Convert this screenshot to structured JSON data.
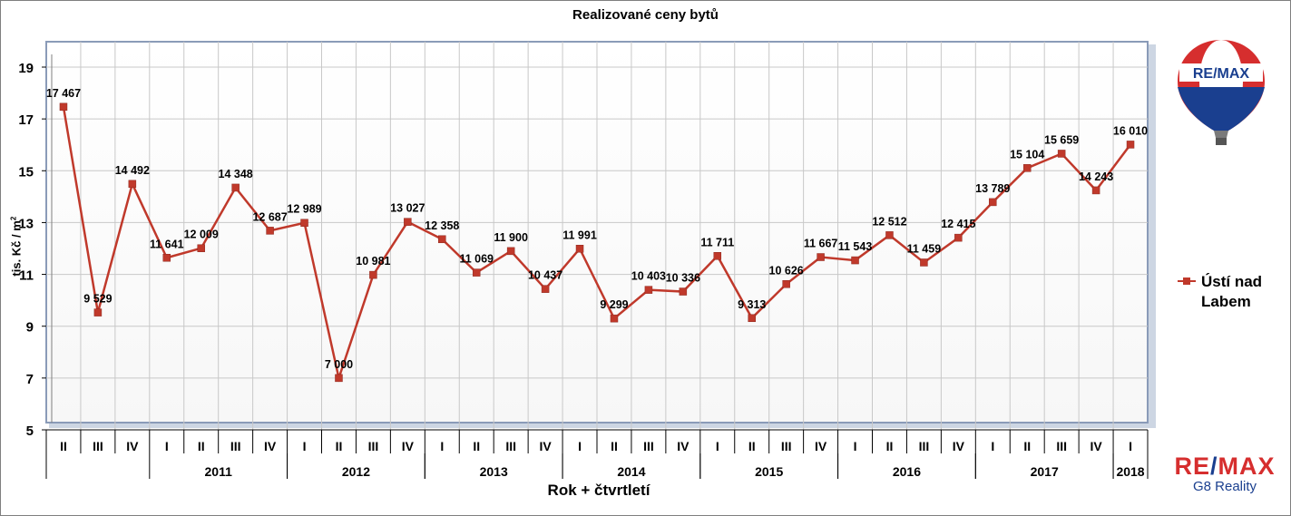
{
  "chart_data": {
    "type": "line",
    "title": "Realizované ceny bytů",
    "xlabel": "Rok + čtvrtletí",
    "ylabel": "tis. Kč / m",
    "ylabel_sup": "2",
    "ylim": [
      5,
      19
    ],
    "yticks": [
      5,
      7,
      9,
      11,
      13,
      15,
      17,
      19
    ],
    "grid": true,
    "legend_position": "right",
    "series_color": "#c0392b",
    "quarters": [
      "II",
      "III",
      "IV",
      "I",
      "II",
      "III",
      "IV",
      "I",
      "II",
      "III",
      "IV",
      "I",
      "II",
      "III",
      "IV",
      "I",
      "II",
      "III",
      "IV",
      "I",
      "II",
      "III",
      "IV",
      "I",
      "II",
      "III",
      "IV",
      "I",
      "II",
      "III",
      "IV",
      "I"
    ],
    "years": [
      {
        "label": "2011",
        "start": 3,
        "count": 4
      },
      {
        "label": "2012",
        "start": 7,
        "count": 4
      },
      {
        "label": "2013",
        "start": 11,
        "count": 4
      },
      {
        "label": "2014",
        "start": 15,
        "count": 4
      },
      {
        "label": "2015",
        "start": 19,
        "count": 4
      },
      {
        "label": "2016",
        "start": 23,
        "count": 4
      },
      {
        "label": "2017",
        "start": 27,
        "count": 4
      },
      {
        "label": "2018",
        "start": 31,
        "count": 1
      }
    ],
    "series": [
      {
        "name": "Ústí nad Labem",
        "values": [
          17467,
          9529,
          14492,
          11641,
          12009,
          14348,
          12687,
          12989,
          7000,
          10981,
          13027,
          12358,
          11069,
          11900,
          10437,
          11991,
          9299,
          10403,
          10336,
          11711,
          9313,
          10626,
          11667,
          11543,
          12512,
          11459,
          12415,
          13789,
          15104,
          15659,
          14243,
          16010
        ],
        "labels": [
          "17 467",
          "9 529",
          "14 492",
          "11 641",
          "12 009",
          "14 348",
          "12 687",
          "12 989",
          "7 000",
          "10 981",
          "13 027",
          "12 358",
          "11 069",
          "11 900",
          "10 437",
          "11 991",
          "9 299",
          "10 403",
          "10 336",
          "11 711",
          "9 313",
          "10 626",
          "11 667",
          "11 543",
          "12 512",
          "11 459",
          "12 415",
          "13 789",
          "15 104",
          "15 659",
          "14 243",
          "16 010"
        ]
      }
    ]
  },
  "legend": {
    "line1": "Ústí nad",
    "line2": "Labem"
  },
  "branding": {
    "balloon_text": "RE/MAX",
    "logo_re": "RE",
    "logo_slash": "/",
    "logo_max": "MAX",
    "office": "G8 Reality",
    "blue": "#1a3f8f",
    "red": "#d62e2e"
  }
}
